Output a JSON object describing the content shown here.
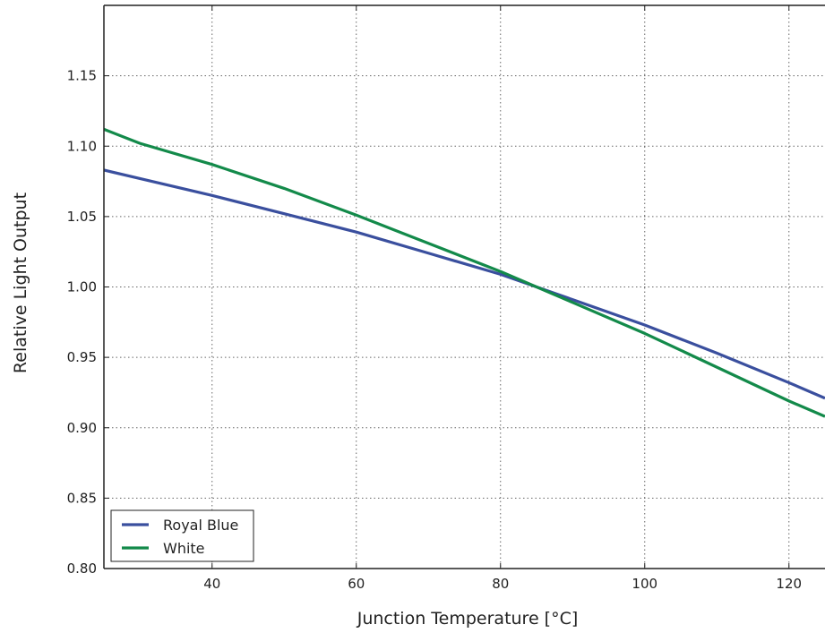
{
  "chart_data": {
    "type": "line",
    "title": "",
    "xlabel": "Junction Temperature [°C]",
    "ylabel": "Relative Light Output",
    "xlim": [
      25,
      125
    ],
    "ylim": [
      0.8,
      1.2
    ],
    "xticks": [
      40,
      60,
      80,
      100,
      120
    ],
    "xtick_labels": [
      "40",
      "60",
      "80",
      "100",
      "120"
    ],
    "yticks": [
      0.8,
      0.85,
      0.9,
      0.95,
      1.0,
      1.05,
      1.1,
      1.15
    ],
    "ytick_labels": [
      "0.80",
      "0.85",
      "0.90",
      "0.95",
      "1.00",
      "1.05",
      "1.10",
      "1.15"
    ],
    "grid": true,
    "legend_position": "bottom-left",
    "series": [
      {
        "name": "Royal Blue",
        "color": "#3a4f9e",
        "x": [
          25,
          30,
          40,
          50,
          60,
          70,
          80,
          85,
          90,
          100,
          110,
          120,
          125
        ],
        "y": [
          1.083,
          1.077,
          1.065,
          1.052,
          1.039,
          1.024,
          1.009,
          1.0,
          0.991,
          0.973,
          0.953,
          0.932,
          0.921
        ]
      },
      {
        "name": "White",
        "color": "#138a4a",
        "x": [
          25,
          30,
          40,
          50,
          60,
          70,
          80,
          85,
          90,
          100,
          110,
          120,
          125
        ],
        "y": [
          1.112,
          1.102,
          1.087,
          1.07,
          1.051,
          1.031,
          1.011,
          1.0,
          0.989,
          0.967,
          0.943,
          0.919,
          0.908
        ]
      }
    ]
  }
}
